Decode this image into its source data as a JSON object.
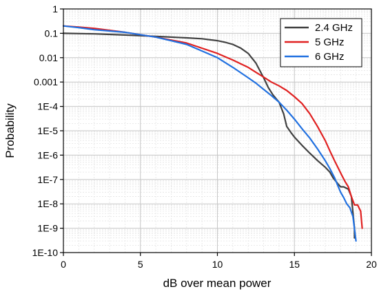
{
  "chart_data": {
    "type": "line",
    "title": "",
    "xlabel": "dB over mean power",
    "ylabel": "Probability",
    "xlim": [
      0,
      20
    ],
    "ylim": [
      1e-10,
      1
    ],
    "yscale": "log",
    "grid": true,
    "minor_grid": true,
    "legend_position": "top-right",
    "x_ticks": [
      {
        "value": 0,
        "label": "0"
      },
      {
        "value": 5,
        "label": "5"
      },
      {
        "value": 10,
        "label": "10"
      },
      {
        "value": 15,
        "label": "15"
      },
      {
        "value": 20,
        "label": "20"
      }
    ],
    "y_ticks": [
      {
        "value": 1,
        "label": "1"
      },
      {
        "value": 0.1,
        "label": "0.1"
      },
      {
        "value": 0.01,
        "label": "0.01"
      },
      {
        "value": 0.001,
        "label": "0.001"
      },
      {
        "value": 0.0001,
        "label": "1E-4"
      },
      {
        "value": 1e-05,
        "label": "1E-5"
      },
      {
        "value": 1e-06,
        "label": "1E-6"
      },
      {
        "value": 1e-07,
        "label": "1E-7"
      },
      {
        "value": 1e-08,
        "label": "1E-8"
      },
      {
        "value": 1e-09,
        "label": "1E-9"
      },
      {
        "value": 1e-10,
        "label": "1E-10"
      }
    ],
    "series": [
      {
        "name": "2.4 GHz",
        "color": "#404040",
        "x": [
          0,
          2,
          4,
          6,
          8,
          9,
          10,
          10.5,
          11,
          11.5,
          12,
          12.5,
          13,
          13.3,
          13.6,
          14,
          14.3,
          14.5,
          14.8,
          15,
          15.5,
          16,
          16.5,
          17,
          17.3,
          17.5,
          17.8,
          18,
          18.2,
          18.5,
          18.7,
          18.9,
          18.9
        ],
        "y": [
          0.1,
          0.095,
          0.085,
          0.075,
          0.065,
          0.06,
          0.05,
          0.043,
          0.035,
          0.025,
          0.015,
          0.006,
          0.0015,
          0.0006,
          0.0003,
          0.00015,
          5e-05,
          1.5e-05,
          8e-06,
          5.5e-06,
          2.5e-06,
          1.2e-06,
          6e-07,
          3.2e-07,
          2e-07,
          1.2e-07,
          7e-08,
          5e-08,
          5e-08,
          4e-08,
          2e-08,
          1e-09,
          4e-10
        ]
      },
      {
        "name": "5 GHz",
        "color": "#e02020",
        "x": [
          0,
          1,
          2,
          4,
          6,
          8,
          10,
          11,
          12,
          12.5,
          13,
          13.5,
          14,
          14.5,
          15,
          15.5,
          16,
          16.5,
          17,
          17.3,
          17.6,
          17.9,
          18.1,
          18.3,
          18.5,
          18.7,
          18.9,
          19.1,
          19.3,
          19.4
        ],
        "y": [
          0.2,
          0.18,
          0.16,
          0.11,
          0.07,
          0.04,
          0.015,
          0.008,
          0.004,
          0.0025,
          0.0016,
          0.001,
          0.0007,
          0.00045,
          0.00025,
          0.00013,
          5e-05,
          1.5e-05,
          4e-06,
          1.5e-06,
          6e-07,
          2.5e-07,
          1.4e-07,
          8e-08,
          5e-08,
          2e-08,
          9e-09,
          9e-09,
          5e-09,
          1e-09
        ]
      },
      {
        "name": "6 GHz",
        "color": "#2070e0",
        "x": [
          0,
          1,
          2,
          4,
          6,
          8,
          10,
          11,
          12,
          12.5,
          13,
          13.5,
          14,
          14.5,
          15,
          15.5,
          16,
          16.5,
          17,
          17.3,
          17.6,
          17.8,
          18,
          18.2,
          18.4,
          18.6,
          18.8,
          19
        ],
        "y": [
          0.2,
          0.17,
          0.14,
          0.11,
          0.07,
          0.035,
          0.01,
          0.004,
          0.0015,
          0.0009,
          0.0005,
          0.00028,
          0.00015,
          7e-05,
          3e-05,
          1.2e-05,
          5e-06,
          1.8e-06,
          6e-07,
          2.8e-07,
          1.2e-07,
          6e-08,
          3e-08,
          1.8e-08,
          1e-08,
          7e-09,
          3e-09,
          3e-10
        ]
      }
    ]
  }
}
